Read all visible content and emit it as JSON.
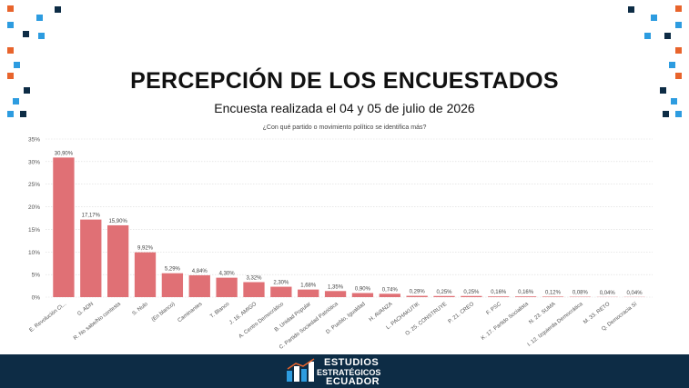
{
  "header": {
    "title": "PERCEPCIÓN DE LOS ENCUESTADOS",
    "subtitle": "Encuesta realizada el 04 y 05 de julio de 2026",
    "question": "¿Con qué partido o movimiento político se identifica más?"
  },
  "colors": {
    "bar": "#e07075",
    "grid": "#d9d9d9",
    "footer": "#0d2c45",
    "square_dark": "#0d2c45",
    "square_orange": "#e8642c",
    "square_blue": "#2d9ce0"
  },
  "footer": {
    "logo_line1": "ESTUDIOS",
    "logo_line2": "ESTRATÉGICOS",
    "logo_line3": "ECUADOR"
  },
  "chart_data": {
    "type": "bar",
    "title": "¿Con qué partido o movimiento político se identifica más?",
    "categories": [
      "E. Revolución Ci...",
      "G. ADN",
      "R. No sabe/No contesta",
      "S. Nulo",
      "(En blanco)",
      "Caminantes",
      "T. Blanco",
      "J. 16. AMIGO",
      "A. Centro Democrático",
      "B. Unidad Popular",
      "C. Partido Sociedad Patriótica",
      "D. Pueblo, Igualdad",
      "H. AVANZA",
      "L. PACHAKUTIK",
      "O. 25. CONSTRUYE",
      "P. 21. CREO",
      "F. PSC",
      "K. 17. Partido Socialista",
      "N. 23. SUMA",
      "I. 12. Izquierda Democrática",
      "M. 33. RETO",
      "Q. Democracia Sí"
    ],
    "values": [
      30.9,
      17.17,
      15.9,
      9.92,
      5.29,
      4.84,
      4.3,
      3.32,
      2.3,
      1.68,
      1.35,
      0.9,
      0.74,
      0.29,
      0.25,
      0.25,
      0.16,
      0.16,
      0.12,
      0.08,
      0.04,
      0.04
    ],
    "value_labels": [
      "30,90%",
      "17,17%",
      "15,90%",
      "9,92%",
      "5,29%",
      "4,84%",
      "4,30%",
      "3,32%",
      "2,30%",
      "1,68%",
      "1,35%",
      "0,90%",
      "0,74%",
      "0,29%",
      "0,25%",
      "0,25%",
      "0,16%",
      "0,16%",
      "0,12%",
      "0,08%",
      "0,04%",
      "0,04%"
    ],
    "yticks": [
      0,
      5,
      10,
      15,
      20,
      25,
      30,
      35
    ],
    "ytick_labels": [
      "0%",
      "5%",
      "10%",
      "15%",
      "20%",
      "25%",
      "30%",
      "35%"
    ],
    "ylim": [
      0,
      35
    ],
    "grid": true,
    "xlabel": "",
    "ylabel": ""
  }
}
